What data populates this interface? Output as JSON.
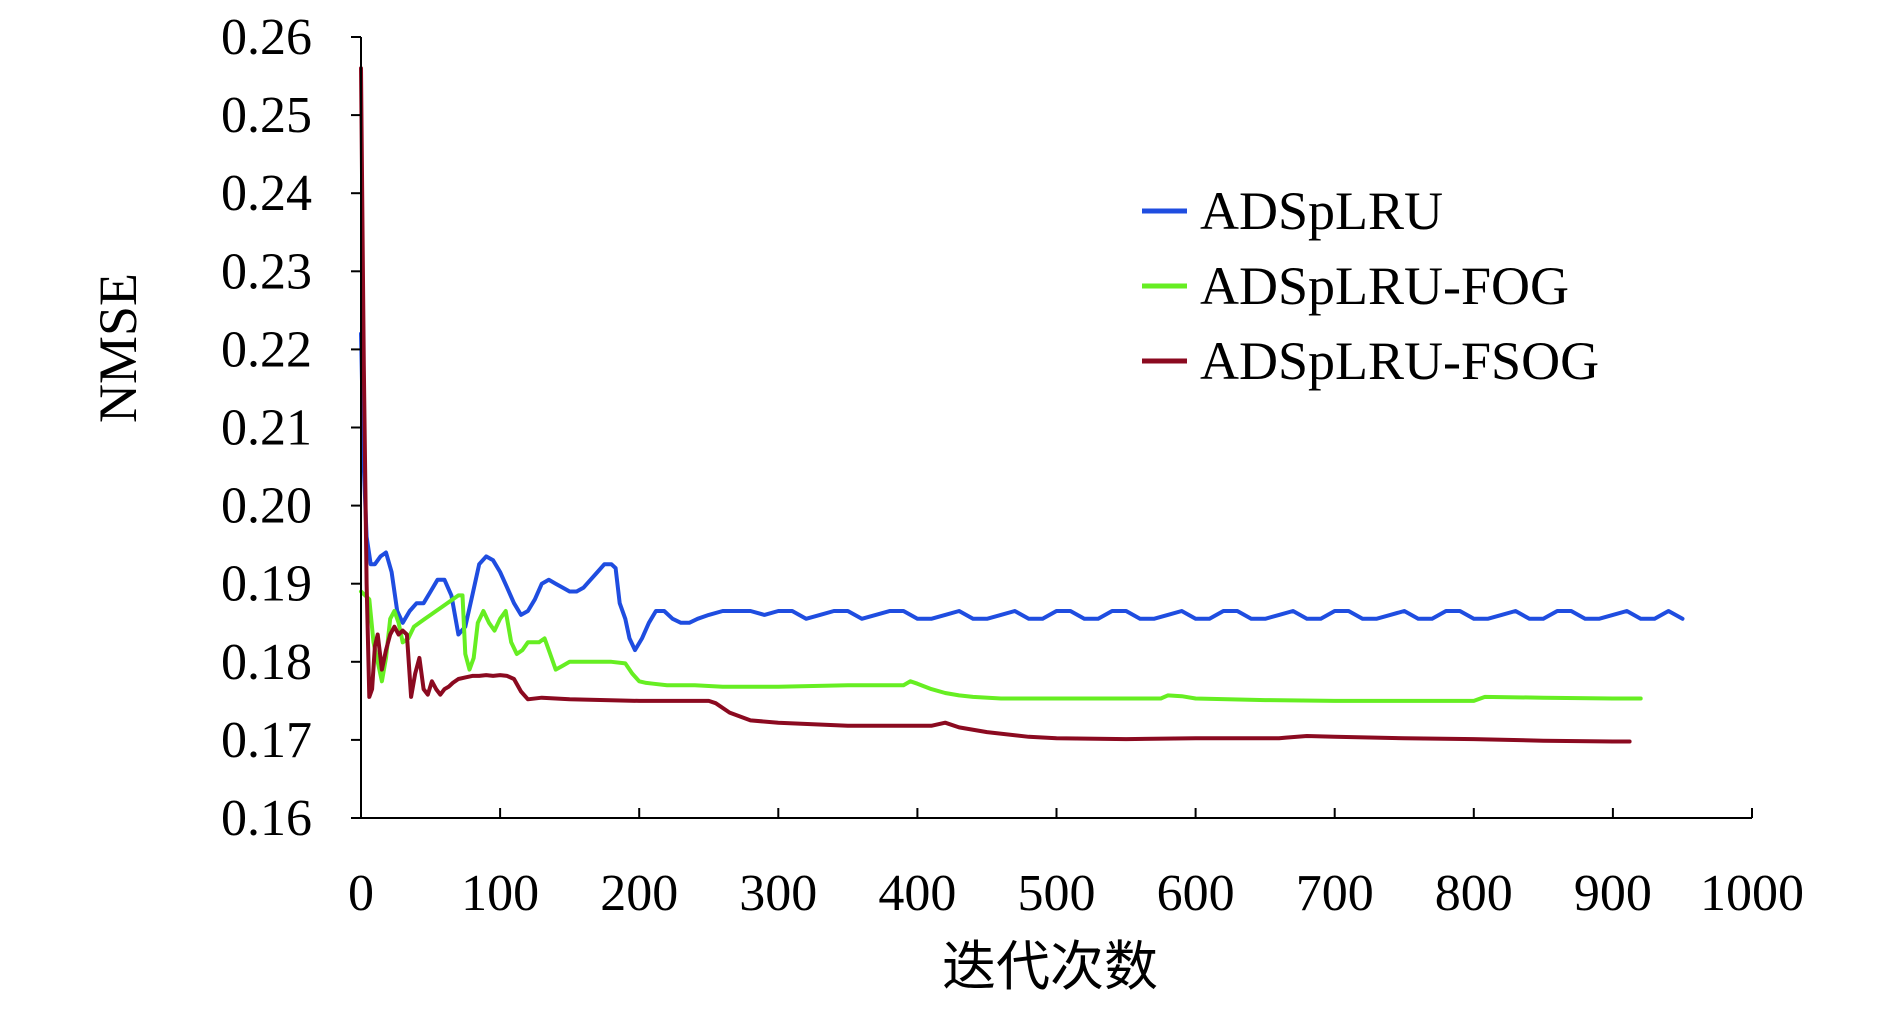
{
  "chart_data": {
    "type": "line",
    "title": "",
    "xlabel": "迭代次数",
    "ylabel": "NMSE",
    "xlim": [
      0,
      1000
    ],
    "ylim": [
      0.16,
      0.26
    ],
    "grid": false,
    "legend_position": "top-right",
    "xticks": [
      "0",
      "100",
      "200",
      "300",
      "400",
      "500",
      "600",
      "700",
      "800",
      "900",
      "1000"
    ],
    "yticks": [
      "0.16",
      "0.17",
      "0.18",
      "0.19",
      "0.20",
      "0.21",
      "0.22",
      "0.23",
      "0.24",
      "0.25",
      "0.26"
    ],
    "series": [
      {
        "name": "ADSpLRU",
        "color": "#1f4de0",
        "x": [
          0,
          2,
          4,
          7,
          10,
          14,
          18,
          22,
          26,
          30,
          35,
          40,
          45,
          50,
          55,
          60,
          65,
          70,
          75,
          80,
          85,
          90,
          95,
          100,
          105,
          110,
          115,
          120,
          125,
          130,
          135,
          140,
          145,
          150,
          155,
          160,
          165,
          170,
          175,
          180,
          183,
          186,
          190,
          193,
          197,
          202,
          207,
          212,
          218,
          224,
          230,
          236,
          242,
          250,
          260,
          270,
          280,
          290,
          300,
          310,
          320,
          330,
          340,
          350,
          360,
          370,
          380,
          390,
          400,
          410,
          420,
          430,
          440,
          450,
          460,
          470,
          480,
          490,
          500,
          510,
          520,
          530,
          540,
          550,
          560,
          570,
          580,
          590,
          600,
          610,
          620,
          630,
          640,
          650,
          660,
          670,
          680,
          690,
          700,
          710,
          720,
          730,
          740,
          750,
          760,
          770,
          780,
          790,
          800,
          810,
          820,
          830,
          840,
          850,
          860,
          870,
          880,
          890,
          900,
          910,
          920,
          930,
          940,
          950
        ],
        "values": [
          0.222,
          0.205,
          0.196,
          0.1925,
          0.1925,
          0.1935,
          0.194,
          0.1915,
          0.1865,
          0.185,
          0.1865,
          0.1875,
          0.1875,
          0.189,
          0.1905,
          0.1905,
          0.1885,
          0.1835,
          0.1845,
          0.1885,
          0.1925,
          0.1935,
          0.193,
          0.1915,
          0.1895,
          0.1875,
          0.186,
          0.1865,
          0.188,
          0.19,
          0.1905,
          0.19,
          0.1895,
          0.189,
          0.189,
          0.1895,
          0.1905,
          0.1915,
          0.1925,
          0.1925,
          0.192,
          0.1875,
          0.1855,
          0.183,
          0.1815,
          0.183,
          0.185,
          0.1865,
          0.1865,
          0.1855,
          0.185,
          0.185,
          0.1855,
          0.186,
          0.1865,
          0.1865,
          0.1865,
          0.186,
          0.1865,
          0.1865,
          0.1855,
          0.186,
          0.1865,
          0.1865,
          0.1855,
          0.186,
          0.1865,
          0.1865,
          0.1855,
          0.1855,
          0.186,
          0.1865,
          0.1855,
          0.1855,
          0.186,
          0.1865,
          0.1855,
          0.1855,
          0.1865,
          0.1865,
          0.1855,
          0.1855,
          0.1865,
          0.1865,
          0.1855,
          0.1855,
          0.186,
          0.1865,
          0.1855,
          0.1855,
          0.1865,
          0.1865,
          0.1855,
          0.1855,
          0.186,
          0.1865,
          0.1855,
          0.1855,
          0.1865,
          0.1865,
          0.1855,
          0.1855,
          0.186,
          0.1865,
          0.1855,
          0.1855,
          0.1865,
          0.1865,
          0.1855,
          0.1855,
          0.186,
          0.1865,
          0.1855,
          0.1855,
          0.1865,
          0.1865,
          0.1855,
          0.1855,
          0.186,
          0.1865,
          0.1855,
          0.1855,
          0.1865,
          0.1855
        ]
      },
      {
        "name": "ADSpLRU-FOG",
        "color": "#66ee22",
        "x": [
          0,
          3,
          6,
          9,
          12,
          15,
          18,
          21,
          24,
          27,
          30,
          34,
          38,
          42,
          46,
          50,
          54,
          58,
          62,
          66,
          70,
          73,
          75,
          78,
          81,
          84,
          88,
          92,
          96,
          100,
          104,
          108,
          112,
          116,
          120,
          124,
          128,
          132,
          136,
          140,
          145,
          150,
          160,
          170,
          180,
          190,
          195,
          200,
          205,
          210,
          220,
          240,
          260,
          300,
          350,
          390,
          395,
          400,
          410,
          420,
          430,
          440,
          460,
          500,
          550,
          575,
          580,
          590,
          600,
          650,
          700,
          750,
          800,
          808,
          850,
          900,
          920
        ],
        "values": [
          0.189,
          0.1885,
          0.188,
          0.1825,
          0.18,
          0.1775,
          0.1805,
          0.1855,
          0.1865,
          0.185,
          0.1825,
          0.183,
          0.1845,
          0.185,
          0.1855,
          0.186,
          0.1865,
          0.187,
          0.1875,
          0.188,
          0.1885,
          0.1885,
          0.181,
          0.179,
          0.1805,
          0.185,
          0.1865,
          0.185,
          0.184,
          0.1855,
          0.1865,
          0.1825,
          0.181,
          0.1815,
          0.1825,
          0.1825,
          0.1825,
          0.183,
          0.181,
          0.179,
          0.1795,
          0.18,
          0.18,
          0.18,
          0.18,
          0.1798,
          0.1785,
          0.1775,
          0.1773,
          0.1772,
          0.177,
          0.177,
          0.1768,
          0.1768,
          0.177,
          0.177,
          0.1775,
          0.1772,
          0.1765,
          0.176,
          0.1757,
          0.1755,
          0.1753,
          0.1753,
          0.1753,
          0.1753,
          0.1757,
          0.1756,
          0.1753,
          0.1751,
          0.175,
          0.175,
          0.175,
          0.1755,
          0.1754,
          0.1753,
          0.1753
        ]
      },
      {
        "name": "ADSpLRU-FSOG",
        "color": "#8b0a20",
        "x": [
          0,
          2,
          4,
          6,
          8,
          10,
          12,
          15,
          18,
          21,
          24,
          27,
          30,
          33,
          36,
          39,
          42,
          45,
          48,
          51,
          54,
          57,
          60,
          63,
          66,
          70,
          75,
          80,
          85,
          90,
          95,
          100,
          105,
          110,
          115,
          120,
          130,
          150,
          200,
          250,
          255,
          265,
          280,
          300,
          350,
          400,
          410,
          420,
          430,
          450,
          480,
          500,
          550,
          600,
          660,
          665,
          680,
          700,
          750,
          800,
          850,
          900,
          912
        ],
        "values": [
          0.256,
          0.218,
          0.19,
          0.1755,
          0.1765,
          0.182,
          0.1835,
          0.179,
          0.1815,
          0.1835,
          0.1845,
          0.1835,
          0.184,
          0.1835,
          0.1755,
          0.1785,
          0.1805,
          0.1765,
          0.1758,
          0.1775,
          0.1765,
          0.1758,
          0.1765,
          0.1768,
          0.1773,
          0.1778,
          0.178,
          0.1782,
          0.1782,
          0.1783,
          0.1782,
          0.1783,
          0.1782,
          0.1778,
          0.1762,
          0.1752,
          0.1754,
          0.1752,
          0.175,
          0.175,
          0.1747,
          0.1735,
          0.1725,
          0.1722,
          0.1718,
          0.1718,
          0.1718,
          0.1722,
          0.1716,
          0.171,
          0.1704,
          0.1702,
          0.1701,
          0.1702,
          0.1702,
          0.1703,
          0.1705,
          0.1704,
          0.1702,
          0.1701,
          0.1699,
          0.1698,
          0.1698
        ]
      }
    ]
  }
}
